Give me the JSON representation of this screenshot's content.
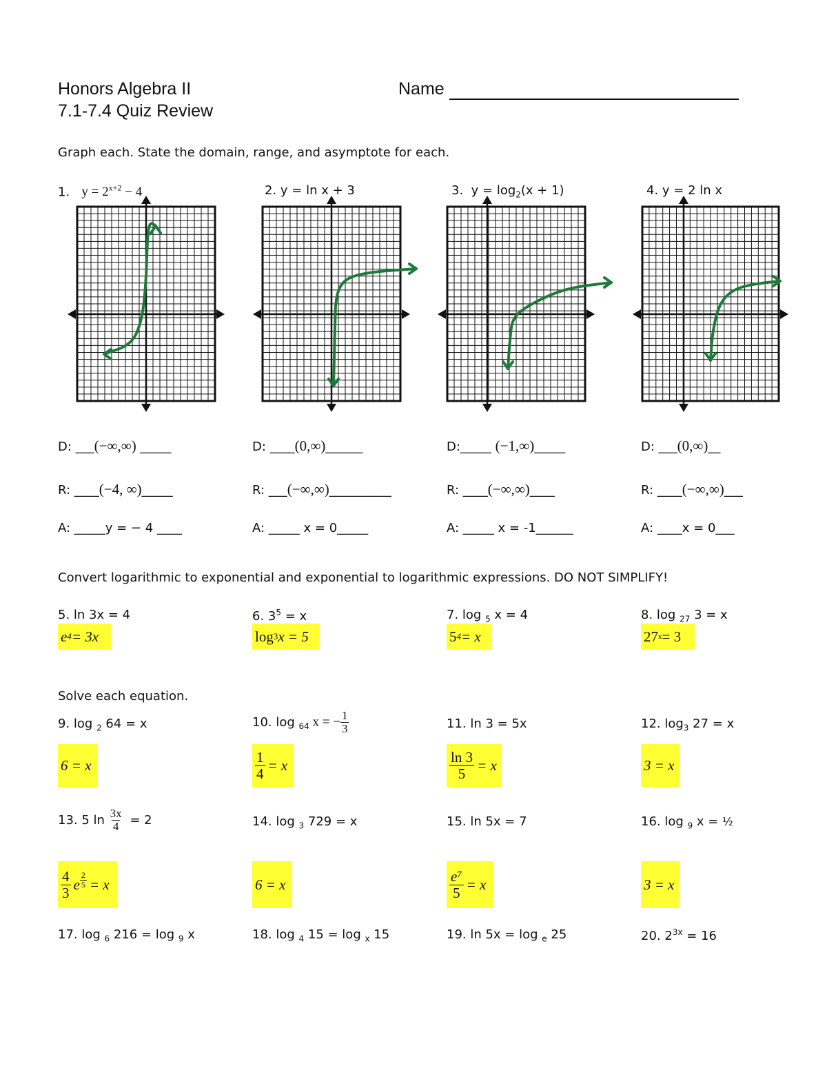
{
  "header": {
    "course": "Honors Algebra II",
    "title": "7.1-7.4 Quiz Review",
    "name_label": "Name"
  },
  "sections": {
    "graph_instructions": "Graph each. State the domain, range, and asymptote for each.",
    "convert_instructions": "Convert logarithmic to exponential and exponential to logarithmic expressions. DO NOT SIMPLIFY!",
    "solve_instructions": "Solve each equation."
  },
  "graphs": [
    {
      "label_num": "1.",
      "eq_main": "y = 2",
      "eq_sup": "x+2",
      "eq_tail": " − 4",
      "domain_label": "D:",
      "domain": "(−∞,∞)",
      "range_label": "R:",
      "range": "(−4, ∞)",
      "asymptote_label": "A:",
      "asymptote": "y = − 4"
    },
    {
      "label_num": "2.",
      "eq_main": "y =  ln x + 3",
      "eq_sup": "",
      "eq_tail": "",
      "domain_label": "D:",
      "domain": "(0,∞)",
      "range_label": "R:",
      "range": "(−∞,∞)",
      "asymptote_label": "A:",
      "asymptote": "x = 0"
    },
    {
      "label_num": "3.",
      "eq_main": "y = log",
      "eq_sub": "2",
      "eq_tail": "(x + 1)",
      "domain_label": "D:",
      "domain": "(−1,∞)",
      "range_label": "R:",
      "range": "(−∞,∞)",
      "asymptote_label": "A:",
      "asymptote": "x = -1"
    },
    {
      "label_num": "4.",
      "eq_main": "y = 2 ln x",
      "eq_sup": "",
      "eq_tail": "",
      "domain_label": "D:",
      "domain": "(0,∞)",
      "range_label": "R:",
      "range": "(−∞,∞)",
      "asymptote_label": "A:",
      "asymptote": "x = 0"
    }
  ],
  "convert": [
    {
      "q": "5.  ln 3x = 4",
      "ans_base": "e",
      "ans_sup": "4",
      "ans_tail": " = 3x"
    },
    {
      "q_main": "6.  3",
      "q_sup": "5",
      "q_tail": " = x",
      "ans_main": "log",
      "ans_sub": "3",
      "ans_tail": " x = 5"
    },
    {
      "q_main": "7.  log ",
      "q_sub": "5",
      "q_tail": " x = 4",
      "ans_base": "5",
      "ans_sup": "4",
      "ans_tail": " = x"
    },
    {
      "q_main": "8. log ",
      "q_sub": "27",
      "q_tail": " 3 = x",
      "ans_base": "27",
      "ans_sup": "x",
      "ans_tail": " = 3"
    }
  ],
  "solve1": [
    {
      "q_main": "9.  log ",
      "q_sub": "2",
      "q_tail": " 64 = x",
      "ans": "6 = x"
    },
    {
      "q_main": "10.  log ",
      "q_sub": "64",
      "q_tail": " x = −",
      "q_frac_num": "1",
      "q_frac_den": "3",
      "ans_num": "1",
      "ans_den": "4",
      "ans_tail": "= x"
    },
    {
      "q_main": "11.  ln 3 = 5x",
      "ans_num": "ln 3",
      "ans_den": "5",
      "ans_tail": "= x"
    },
    {
      "q_main": "12. log",
      "q_sub": "3",
      "q_tail": " 27 = x",
      "ans": "3 = x"
    }
  ],
  "solve2": [
    {
      "q_main": "13.  5 ln ",
      "q_frac_num": "3x",
      "q_frac_den": "4",
      "q_tail": " = 2",
      "ans_num": "4",
      "ans_den": "3",
      "ans_e": "e",
      "ans_sup_num": "2",
      "ans_sup_den": "5",
      "ans_tail": " = x"
    },
    {
      "q_main": "14.  log ",
      "q_sub": "3",
      "q_tail": " 729 = x",
      "ans": "6 = x"
    },
    {
      "q_main": "15.  ln 5x = 7",
      "ans_num": "e⁷",
      "ans_den": "5",
      "ans_tail": "= x"
    },
    {
      "q_main": "16.  log ",
      "q_sub": "9",
      "q_tail": " x  = ",
      "q_half": "½",
      "ans": "3 = x"
    }
  ],
  "solve3": [
    {
      "q_main": "17.  log ",
      "q_sub": "6",
      "q_mid": " 216 = log ",
      "q_sub2": "9",
      "q_tail": " x"
    },
    {
      "q_main": "18.  log ",
      "q_sub": "4",
      "q_mid": " 15 = log ",
      "q_sub2": "x",
      "q_tail": " 15"
    },
    {
      "q_main": "19.  ln 5x = log ",
      "q_sub": "e",
      "q_tail": " 25"
    },
    {
      "q_main": "20.  2",
      "q_sup": "3x",
      "q_tail": " = 16"
    }
  ],
  "colors": {
    "curve": "#1f7a3a",
    "highlight": "#ffff33",
    "grid": "#111111"
  }
}
